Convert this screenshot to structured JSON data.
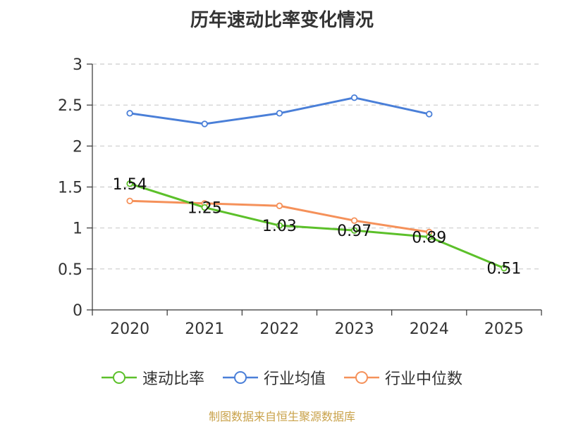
{
  "chart_data": {
    "type": "line",
    "title": "历年速动比率变化情况",
    "categories": [
      "2020",
      "2021",
      "2022",
      "2023",
      "2024",
      "2025"
    ],
    "ylim": [
      0,
      3
    ],
    "yticks": [
      "0",
      "0.5",
      "1",
      "1.5",
      "2",
      "2.5",
      "3"
    ],
    "series": [
      {
        "name": "速动比率",
        "color": "#5cc02a",
        "values": [
          1.54,
          1.25,
          1.03,
          0.97,
          0.89,
          0.51
        ],
        "labels": [
          "1.54",
          "1.25",
          "1.03",
          "0.97",
          "0.89",
          "0.51"
        ]
      },
      {
        "name": "行业均值",
        "color": "#4a7fd8",
        "values": [
          2.4,
          2.27,
          2.4,
          2.59,
          2.39,
          null
        ]
      },
      {
        "name": "行业中位数",
        "color": "#f5915a",
        "values": [
          1.33,
          1.3,
          1.27,
          1.09,
          0.95,
          null
        ]
      }
    ]
  },
  "source": "制图数据来自恒生聚源数据库"
}
